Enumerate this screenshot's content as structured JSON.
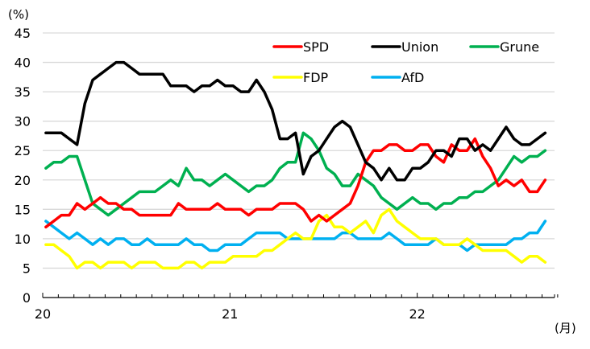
{
  "chart_data": {
    "type": "line",
    "title": "",
    "ylabel": "(%)",
    "xlabel": "(月)",
    "ylim": [
      0,
      45
    ],
    "yticks": [
      0,
      5,
      10,
      15,
      20,
      25,
      30,
      35,
      40,
      45
    ],
    "grid": true,
    "x_unit": "months since 2020-01",
    "xlim": [
      0,
      32.8
    ],
    "xtick_labels": [
      {
        "label": "20",
        "x": 0
      },
      {
        "label": "21",
        "x": 12
      },
      {
        "label": "22",
        "x": 24
      }
    ],
    "minor_ticks_every": 1,
    "legend": {
      "placement": "top-right",
      "entries": [
        "SPD",
        "Union",
        "Grune",
        "FDP",
        "AfD"
      ]
    },
    "x": [
      0.2,
      0.7,
      1.2,
      1.7,
      2.2,
      2.7,
      3.2,
      3.7,
      4.2,
      4.7,
      5.2,
      5.7,
      6.2,
      6.7,
      7.2,
      7.7,
      8.2,
      8.7,
      9.2,
      9.7,
      10.2,
      10.7,
      11.2,
      11.7,
      12.2,
      12.7,
      13.2,
      13.7,
      14.2,
      14.7,
      15.2,
      15.7,
      16.2,
      16.7,
      17.2,
      17.7,
      18.2,
      18.7,
      19.2,
      19.7,
      20.2,
      20.7,
      21.2,
      21.7,
      22.2,
      22.7,
      23.2,
      23.7,
      24.2,
      24.7,
      25.2,
      25.7,
      26.2,
      26.7,
      27.2,
      27.7,
      28.2,
      28.7,
      29.2,
      29.7,
      30.2,
      30.7,
      31.2,
      31.7,
      32.2
    ],
    "series": [
      {
        "name": "SPD",
        "color": "#ff0000",
        "values": [
          12,
          13,
          14,
          14,
          16,
          15,
          16,
          17,
          16,
          16,
          15,
          15,
          14,
          14,
          14,
          14,
          14,
          16,
          15,
          15,
          15,
          15,
          16,
          15,
          15,
          15,
          14,
          15,
          15,
          15,
          16,
          16,
          16,
          15,
          13,
          14,
          13,
          14,
          15,
          16,
          19,
          23,
          25,
          25,
          26,
          26,
          25,
          25,
          26,
          26,
          24,
          23,
          26,
          25,
          25,
          27,
          24,
          22,
          19,
          20,
          19,
          20,
          18,
          18,
          20
        ]
      },
      {
        "name": "Union",
        "color": "#000000",
        "values": [
          28,
          28,
          28,
          27,
          26,
          33,
          37,
          38,
          39,
          40,
          40,
          39,
          38,
          38,
          38,
          38,
          36,
          36,
          36,
          35,
          36,
          36,
          37,
          36,
          36,
          35,
          35,
          37,
          35,
          32,
          27,
          27,
          28,
          21,
          24,
          25,
          27,
          29,
          30,
          29,
          26,
          23,
          22,
          20,
          22,
          20,
          20,
          22,
          22,
          23,
          25,
          25,
          24,
          27,
          27,
          25,
          26,
          25,
          27,
          29,
          27,
          26,
          26,
          27,
          28
        ]
      },
      {
        "name": "Grune",
        "color": "#00b050",
        "values": [
          22,
          23,
          23,
          24,
          24,
          20,
          16,
          15,
          14,
          15,
          16,
          17,
          18,
          18,
          18,
          19,
          20,
          19,
          22,
          20,
          20,
          19,
          20,
          21,
          20,
          19,
          18,
          19,
          19,
          20,
          22,
          23,
          23,
          28,
          27,
          25,
          22,
          21,
          19,
          19,
          21,
          20,
          19,
          17,
          16,
          15,
          16,
          17,
          16,
          16,
          15,
          16,
          16,
          17,
          17,
          18,
          18,
          19,
          20,
          22,
          24,
          23,
          24,
          24,
          25
        ]
      },
      {
        "name": "FDP",
        "color": "#ffff00",
        "values": [
          9,
          9,
          8,
          7,
          5,
          6,
          6,
          5,
          6,
          6,
          6,
          5,
          6,
          6,
          6,
          5,
          5,
          5,
          6,
          6,
          5,
          6,
          6,
          6,
          7,
          7,
          7,
          7,
          8,
          8,
          9,
          10,
          11,
          10,
          10,
          13,
          14,
          12,
          12,
          11,
          12,
          13,
          11,
          14,
          15,
          13,
          12,
          11,
          10,
          10,
          10,
          9,
          9,
          9,
          10,
          9,
          8,
          8,
          8,
          8,
          7,
          6,
          7,
          7,
          6
        ]
      },
      {
        "name": "AfD",
        "color": "#00b0f0",
        "values": [
          13,
          12,
          11,
          10,
          11,
          10,
          9,
          10,
          9,
          10,
          10,
          9,
          9,
          10,
          9,
          9,
          9,
          9,
          10,
          9,
          9,
          8,
          8,
          9,
          9,
          9,
          10,
          11,
          11,
          11,
          11,
          10,
          10,
          10,
          10,
          10,
          10,
          10,
          11,
          11,
          10,
          10,
          10,
          10,
          11,
          10,
          9,
          9,
          9,
          9,
          10,
          9,
          9,
          9,
          8,
          9,
          9,
          9,
          9,
          9,
          10,
          10,
          11,
          11,
          13
        ]
      }
    ]
  }
}
